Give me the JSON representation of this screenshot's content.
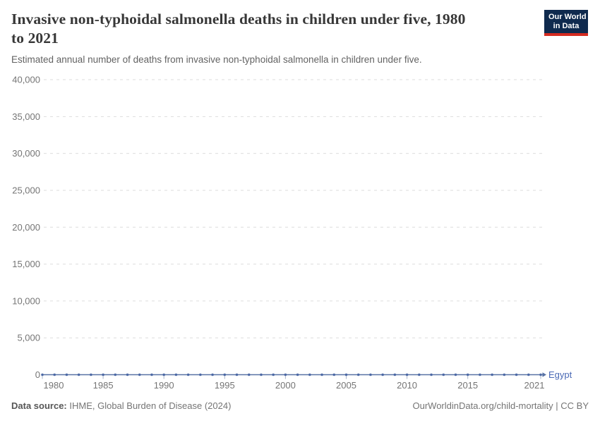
{
  "header": {
    "title_line1": "Invasive non-typhoidal salmonella deaths in children under five, 1980",
    "title_line2": "to 2021",
    "subtitle": "Estimated annual number of deaths from invasive non-typhoidal salmonella in children under five.",
    "logo": {
      "line1": "Our World",
      "line2": "in Data",
      "bg_color": "#0f2a4e",
      "accent_color": "#d42b21"
    }
  },
  "chart_data": {
    "type": "line",
    "title": "Invasive non-typhoidal salmonella deaths in children under five, 1980 to 2021",
    "subtitle": "Estimated annual number of deaths from invasive non-typhoidal salmonella in children under five.",
    "xlabel": "",
    "ylabel": "",
    "ylim": [
      0,
      40000
    ],
    "xlim": [
      1980,
      2021
    ],
    "grid": "horizontal-dashed",
    "legend_position": "end-of-line-label",
    "x": [
      1980,
      1981,
      1982,
      1983,
      1984,
      1985,
      1986,
      1987,
      1988,
      1989,
      1990,
      1991,
      1992,
      1993,
      1994,
      1995,
      1996,
      1997,
      1998,
      1999,
      2000,
      2001,
      2002,
      2003,
      2004,
      2005,
      2006,
      2007,
      2008,
      2009,
      2010,
      2011,
      2012,
      2013,
      2014,
      2015,
      2016,
      2017,
      2018,
      2019,
      2020,
      2021
    ],
    "series": [
      {
        "name": "Egypt",
        "values": [
          0,
          0,
          0,
          0,
          0,
          0,
          0,
          0,
          0,
          0,
          0,
          0,
          0,
          0,
          0,
          0,
          0,
          0,
          0,
          0,
          0,
          0,
          0,
          0,
          0,
          0,
          0,
          0,
          0,
          0,
          0,
          0,
          0,
          0,
          0,
          0,
          0,
          0,
          0,
          0,
          0,
          0
        ]
      }
    ],
    "yticks": [
      {
        "value": 0,
        "label": "0"
      },
      {
        "value": 5000,
        "label": "5,000"
      },
      {
        "value": 10000,
        "label": "10,000"
      },
      {
        "value": 15000,
        "label": "15,000"
      },
      {
        "value": 20000,
        "label": "20,000"
      },
      {
        "value": 25000,
        "label": "25,000"
      },
      {
        "value": 30000,
        "label": "30,000"
      },
      {
        "value": 35000,
        "label": "35,000"
      },
      {
        "value": 40000,
        "label": "40,000"
      }
    ],
    "xticks": [
      "1980",
      "1985",
      "1990",
      "1995",
      "2000",
      "2005",
      "2010",
      "2015",
      "2021"
    ],
    "end_label": "Egypt",
    "colors": {
      "line": "#5872a5",
      "marker": "#4c69a5",
      "end_label": "#4a69b5",
      "grid": "#dddddd",
      "axis_text": "#757575",
      "tick_mark": "#a8b4c9"
    }
  },
  "footer": {
    "source_label": "Data source:",
    "source_text": " IHME, Global Burden of Disease (2024)",
    "credit": "OurWorldinData.org/child-mortality | CC BY"
  }
}
